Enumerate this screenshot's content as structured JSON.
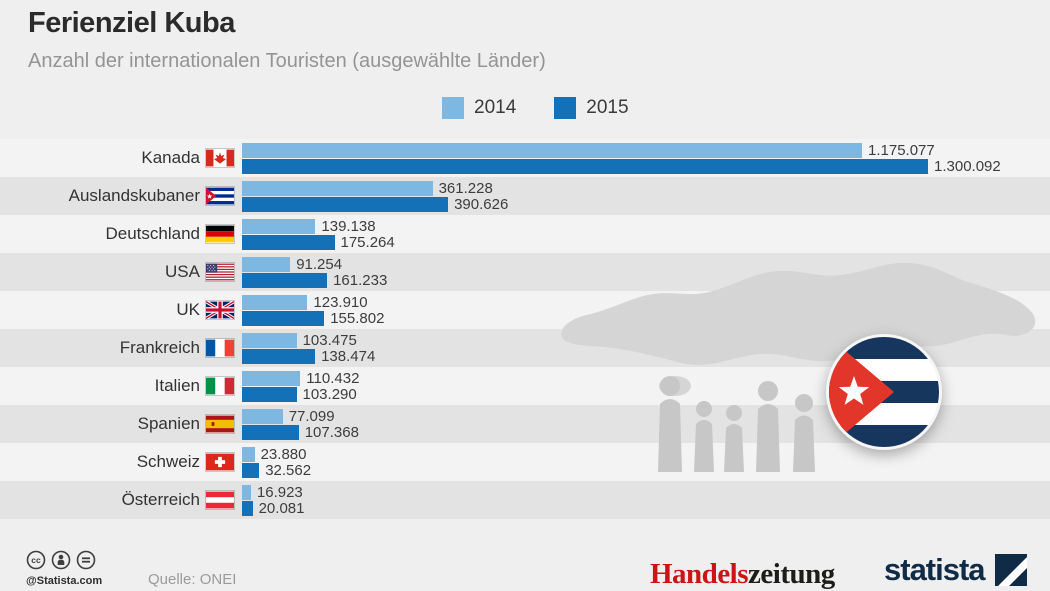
{
  "header": {
    "title": "Ferienziel Kuba",
    "subtitle": "Anzahl der internationalen Touristen (ausgewählte Länder)"
  },
  "legend": {
    "items": [
      {
        "label": "2014",
        "color": "#7cb8e2"
      },
      {
        "label": "2015",
        "color": "#1471b8"
      }
    ]
  },
  "chart_data": {
    "type": "bar",
    "orientation": "horizontal",
    "title": "Ferienziel Kuba",
    "subtitle": "Anzahl der internationalen Touristen (ausgewählte Länder)",
    "legend_position": "top",
    "grid": false,
    "xlim": [
      0,
      1300092
    ],
    "categories": [
      "Kanada",
      "Auslandskubaner",
      "Deutschland",
      "USA",
      "UK",
      "Frankreich",
      "Italien",
      "Spanien",
      "Schweiz",
      "Österreich"
    ],
    "flags": [
      "canada",
      "cuba",
      "germany",
      "usa",
      "uk",
      "france",
      "italy",
      "spain",
      "switzerland",
      "austria"
    ],
    "series": [
      {
        "name": "2014",
        "color": "#7cb8e2",
        "values": [
          1175077,
          361228,
          139138,
          91254,
          123910,
          103475,
          110432,
          77099,
          23880,
          16923
        ],
        "labels": [
          "1.175.077",
          "361.228",
          "139.138",
          "91.254",
          "123.910",
          "103.475",
          "110.432",
          "77.099",
          "23.880",
          "16.923"
        ]
      },
      {
        "name": "2015",
        "color": "#1471b8",
        "values": [
          1300092,
          390626,
          175264,
          161233,
          155802,
          138474,
          103290,
          107368,
          32562,
          20081
        ],
        "labels": [
          "1.300.092",
          "390.626",
          "175.264",
          "161.233",
          "155.802",
          "138.474",
          "103.290",
          "107.368",
          "32.562",
          "20.081"
        ]
      }
    ],
    "decorations": [
      "cuba-map-silhouette",
      "tourists-silhouettes",
      "cuba-flag-badge"
    ]
  },
  "footer": {
    "license_icons": [
      "cc-icon",
      "attribution-person-icon",
      "no-derivatives-icon"
    ],
    "attribution": "@Statista.com",
    "source": "Quelle: ONEI",
    "brands": {
      "handelszeitung_red": "Handels",
      "handelszeitung_black": "zeitung",
      "statista": "statista"
    }
  }
}
